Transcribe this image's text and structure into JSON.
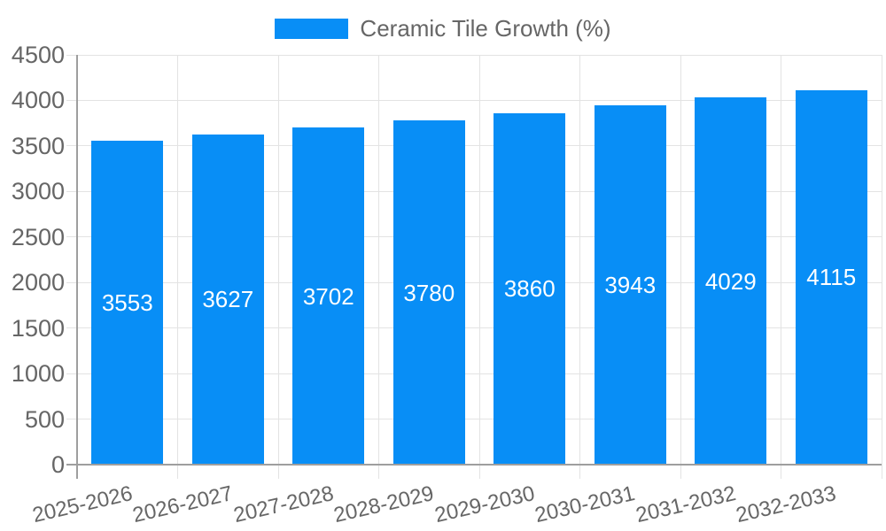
{
  "chart_data": {
    "type": "bar",
    "title": "",
    "legend_label": "Ceramic Tile Growth (%)",
    "legend_position": "top",
    "categories": [
      "2025-2026",
      "2026-2027",
      "2027-2028",
      "2028-2029",
      "2029-2030",
      "2030-2031",
      "2031-2032",
      "2032-2033"
    ],
    "values": [
      3553,
      3627,
      3702,
      3780,
      3860,
      3943,
      4029,
      4115
    ],
    "value_labels": [
      "3553",
      "3627",
      "3702",
      "3780",
      "3860",
      "3943",
      "4029",
      "4115"
    ],
    "xlabel": "",
    "ylabel": "",
    "ylim": [
      0,
      4500
    ],
    "yticks": [
      0,
      500,
      1000,
      1500,
      2000,
      2500,
      3000,
      3500,
      4000,
      4500
    ],
    "grid": true,
    "colors": {
      "bar": "#088ef6",
      "grid_line": "#e3e3e3",
      "axis_line": "#9e9e9e",
      "tick_text": "#666666",
      "value_label_text": "#ffffff",
      "background": "#ffffff"
    }
  }
}
